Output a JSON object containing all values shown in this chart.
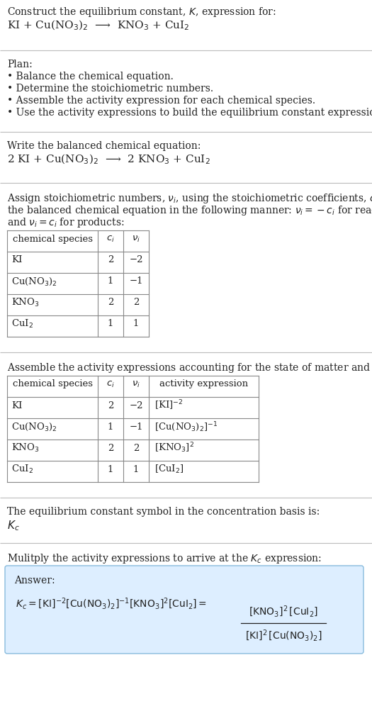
{
  "title_line1": "Construct the equilibrium constant, $K$, expression for:",
  "title_line2": "KI + Cu(NO$_3$)$_2$  ⟶  KNO$_3$ + CuI$_2$",
  "plan_header": "Plan:",
  "plan_bullets": [
    "• Balance the chemical equation.",
    "• Determine the stoichiometric numbers.",
    "• Assemble the activity expression for each chemical species.",
    "• Use the activity expressions to build the equilibrium constant expression."
  ],
  "balanced_header": "Write the balanced chemical equation:",
  "balanced_eq": "2 KI + Cu(NO$_3$)$_2$  ⟶  2 KNO$_3$ + CuI$_2$",
  "stoich_intro_parts": [
    "Assign stoichiometric numbers, $\\nu_i$, using the stoichiometric coefficients, $c_i$, from",
    "the balanced chemical equation in the following manner: $\\nu_i = -c_i$ for reactants",
    "and $\\nu_i = c_i$ for products:"
  ],
  "table1_headers": [
    "chemical species",
    "$c_i$",
    "$\\nu_i$"
  ],
  "table1_rows": [
    [
      "KI",
      "2",
      "−2"
    ],
    [
      "Cu(NO$_3$)$_2$",
      "1",
      "−1"
    ],
    [
      "KNO$_3$",
      "2",
      "2"
    ],
    [
      "CuI$_2$",
      "1",
      "1"
    ]
  ],
  "activity_intro": "Assemble the activity expressions accounting for the state of matter and $\\nu_i$:",
  "table2_headers": [
    "chemical species",
    "$c_i$",
    "$\\nu_i$",
    "activity expression"
  ],
  "table2_rows": [
    [
      "KI",
      "2",
      "−2",
      "[KI]$^{-2}$"
    ],
    [
      "Cu(NO$_3$)$_2$",
      "1",
      "−1",
      "[Cu(NO$_3$)$_2$]$^{-1}$"
    ],
    [
      "KNO$_3$",
      "2",
      "2",
      "[KNO$_3$]$^2$"
    ],
    [
      "CuI$_2$",
      "1",
      "1",
      "[CuI$_2$]"
    ]
  ],
  "kc_intro": "The equilibrium constant symbol in the concentration basis is:",
  "kc_symbol": "$K_c$",
  "multiply_intro": "Mulitply the activity expressions to arrive at the $K_c$ expression:",
  "answer_label": "Answer:",
  "answer_box_color": "#ddeeff",
  "answer_box_border": "#88bbdd",
  "bg_color": "#ffffff",
  "text_color": "#222222",
  "table_border_color": "#888888",
  "section_line_color": "#bbbbbb"
}
